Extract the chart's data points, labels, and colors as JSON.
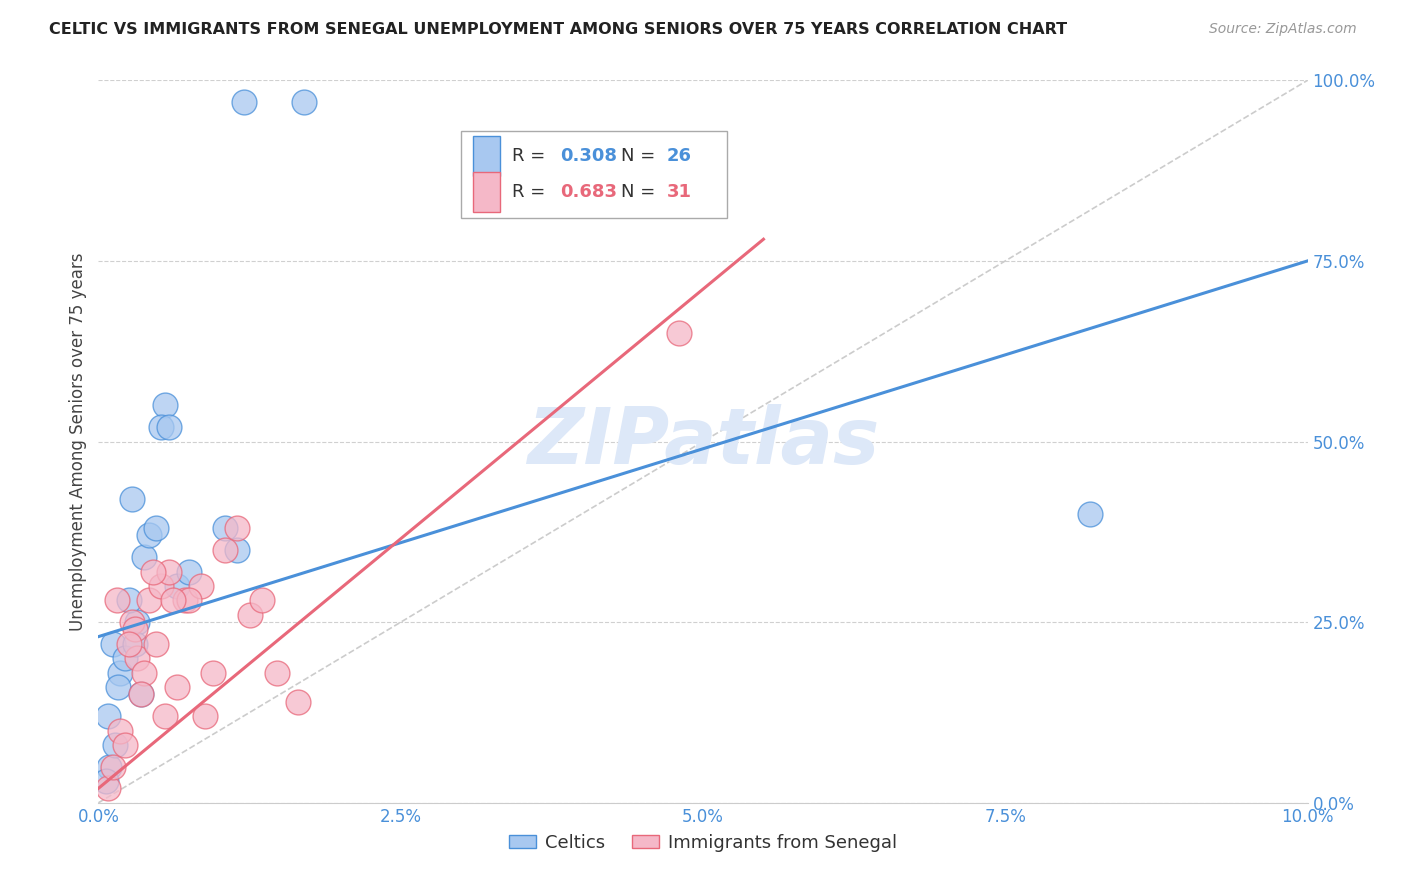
{
  "title": "CELTIC VS IMMIGRANTS FROM SENEGAL UNEMPLOYMENT AMONG SENIORS OVER 75 YEARS CORRELATION CHART",
  "source": "Source: ZipAtlas.com",
  "ylabel": "Unemployment Among Seniors over 75 years",
  "xlim": [
    0.0,
    10.0
  ],
  "ylim": [
    0.0,
    100.0
  ],
  "legend_label1": "Celtics",
  "legend_label2": "Immigrants from Senegal",
  "r1": "0.308",
  "n1": "26",
  "r2": "0.683",
  "n2": "31",
  "color_blue": "#a8c8f0",
  "color_pink": "#f5b8c8",
  "color_blue_line": "#4a90d9",
  "color_pink_line": "#e8687a",
  "color_diag": "#cccccc",
  "watermark": "ZIPatlas",
  "blue_line_x": [
    0,
    10
  ],
  "blue_line_y": [
    23,
    75
  ],
  "pink_line_x": [
    0,
    5.5
  ],
  "pink_line_y": [
    2,
    78
  ],
  "celtics_x": [
    1.2,
    1.7,
    0.55,
    0.28,
    0.12,
    0.18,
    0.09,
    0.06,
    0.14,
    0.22,
    0.08,
    0.16,
    0.38,
    0.42,
    0.52,
    0.58,
    1.05,
    1.15,
    0.32,
    0.48,
    0.3,
    0.25,
    0.65,
    0.75,
    8.2,
    0.35
  ],
  "celtics_y": [
    97,
    97,
    55,
    42,
    22,
    18,
    5,
    3,
    8,
    20,
    12,
    16,
    34,
    37,
    52,
    52,
    38,
    35,
    25,
    38,
    22,
    28,
    30,
    32,
    40,
    15
  ],
  "senegal_x": [
    0.08,
    0.12,
    0.18,
    0.22,
    0.28,
    0.32,
    0.38,
    0.42,
    0.48,
    0.52,
    0.58,
    0.65,
    0.72,
    0.85,
    0.95,
    1.05,
    1.15,
    1.25,
    1.35,
    1.48,
    1.65,
    0.3,
    0.45,
    0.55,
    0.75,
    4.8,
    0.25,
    0.35,
    0.15,
    0.62,
    0.88
  ],
  "senegal_y": [
    2,
    5,
    10,
    8,
    25,
    20,
    18,
    28,
    22,
    30,
    32,
    16,
    28,
    30,
    18,
    35,
    38,
    26,
    28,
    18,
    14,
    24,
    32,
    12,
    28,
    65,
    22,
    15,
    28,
    28,
    12
  ]
}
